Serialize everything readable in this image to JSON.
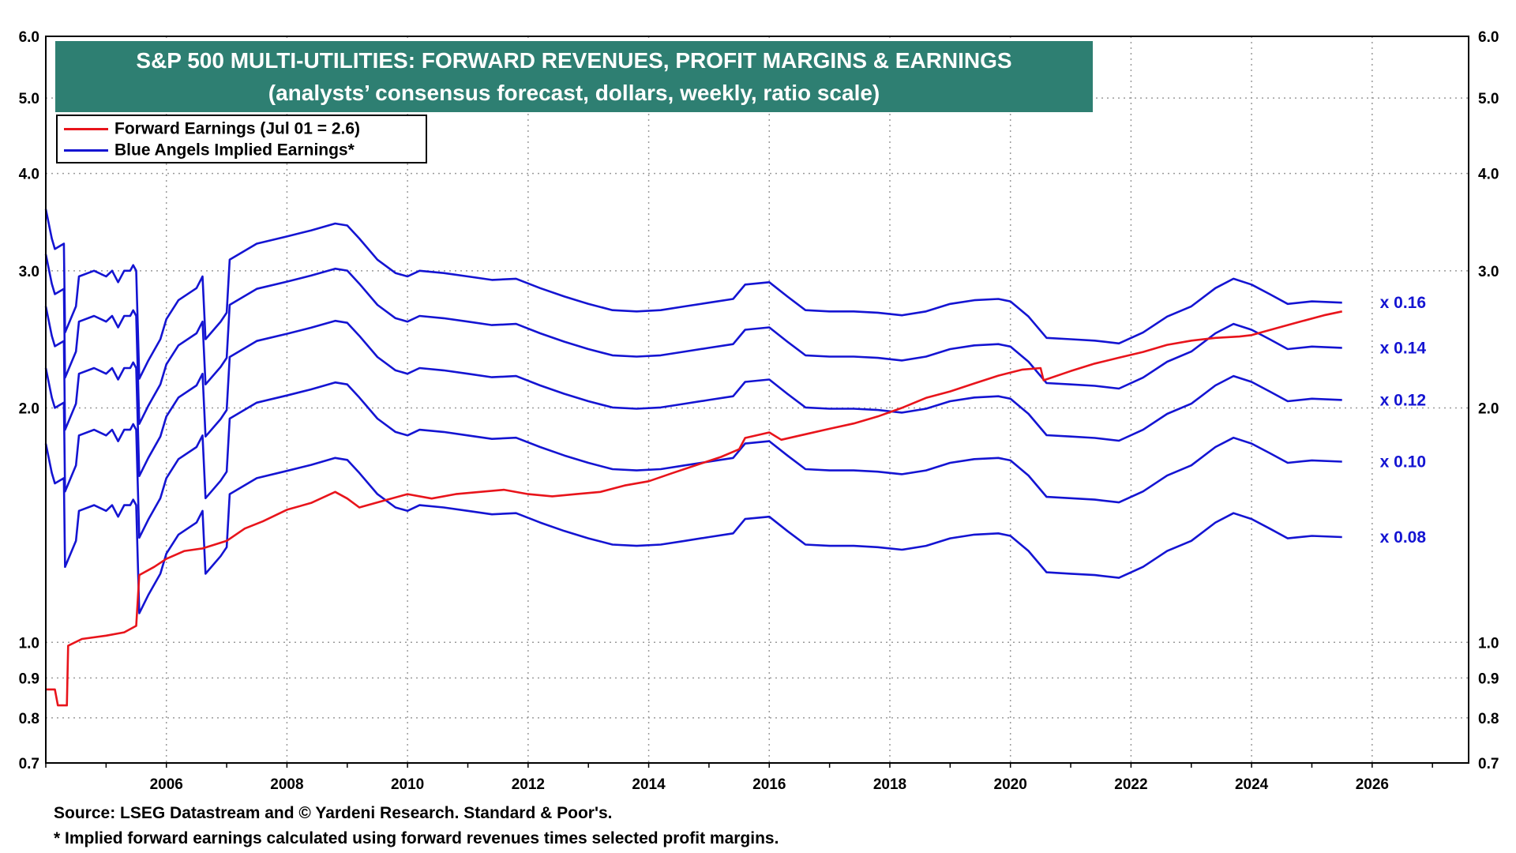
{
  "title": {
    "line1": "S&P 500 MULTI-UTILITIES: FORWARD REVENUES, PROFIT MARGINS & EARNINGS",
    "line2": "(analysts’ consensus forecast, dollars, weekly, ratio scale)"
  },
  "legend": {
    "items": [
      {
        "label": "Forward Earnings (Jul 01 = 2.6)",
        "color": "#e8141b"
      },
      {
        "label": "Blue Angels Implied Earnings*",
        "color": "#1414d2"
      }
    ]
  },
  "footer": {
    "source": "Source: LSEG Datastream and © Yardeni Research. Standard & Poor's.",
    "note": "* Implied forward earnings calculated using forward revenues times selected profit margins."
  },
  "chart_data": {
    "type": "line",
    "scale": "log",
    "grid": true,
    "legend_position": "top-left",
    "xlim": [
      2004.0,
      2027.6
    ],
    "ylim": [
      0.7,
      6.0
    ],
    "x_ticks": [
      2006,
      2008,
      2010,
      2012,
      2014,
      2016,
      2018,
      2020,
      2022,
      2024,
      2026
    ],
    "y_ticks": [
      "6.0",
      "5.0",
      "4.0",
      "3.0",
      "2.0",
      "1.0",
      "0.9",
      "0.8",
      "0.7"
    ],
    "colors": {
      "earnings": "#e8141b",
      "angels": "#1414d2"
    },
    "series": [
      {
        "name": "Forward Earnings (Jul 01 = 2.6)",
        "color": "#e8141b",
        "points": [
          [
            2004.0,
            0.87
          ],
          [
            2004.15,
            0.87
          ],
          [
            2004.2,
            0.83
          ],
          [
            2004.35,
            0.83
          ],
          [
            2004.37,
            0.99
          ],
          [
            2004.6,
            1.01
          ],
          [
            2005.0,
            1.02
          ],
          [
            2005.3,
            1.03
          ],
          [
            2005.5,
            1.05
          ],
          [
            2005.55,
            1.22
          ],
          [
            2005.8,
            1.25
          ],
          [
            2006.0,
            1.28
          ],
          [
            2006.3,
            1.31
          ],
          [
            2006.6,
            1.32
          ],
          [
            2007.0,
            1.35
          ],
          [
            2007.3,
            1.4
          ],
          [
            2007.6,
            1.43
          ],
          [
            2008.0,
            1.48
          ],
          [
            2008.4,
            1.51
          ],
          [
            2008.8,
            1.56
          ],
          [
            2009.0,
            1.53
          ],
          [
            2009.2,
            1.49
          ],
          [
            2009.6,
            1.52
          ],
          [
            2010.0,
            1.55
          ],
          [
            2010.4,
            1.53
          ],
          [
            2010.8,
            1.55
          ],
          [
            2011.2,
            1.56
          ],
          [
            2011.6,
            1.57
          ],
          [
            2012.0,
            1.55
          ],
          [
            2012.4,
            1.54
          ],
          [
            2012.8,
            1.55
          ],
          [
            2013.2,
            1.56
          ],
          [
            2013.6,
            1.59
          ],
          [
            2014.0,
            1.61
          ],
          [
            2014.4,
            1.65
          ],
          [
            2014.8,
            1.69
          ],
          [
            2015.2,
            1.73
          ],
          [
            2015.5,
            1.77
          ],
          [
            2015.6,
            1.83
          ],
          [
            2016.0,
            1.86
          ],
          [
            2016.2,
            1.82
          ],
          [
            2016.6,
            1.85
          ],
          [
            2017.0,
            1.88
          ],
          [
            2017.4,
            1.91
          ],
          [
            2017.8,
            1.95
          ],
          [
            2018.2,
            2.0
          ],
          [
            2018.6,
            2.06
          ],
          [
            2019.0,
            2.1
          ],
          [
            2019.4,
            2.15
          ],
          [
            2019.8,
            2.2
          ],
          [
            2020.2,
            2.24
          ],
          [
            2020.5,
            2.25
          ],
          [
            2020.55,
            2.17
          ],
          [
            2021.0,
            2.23
          ],
          [
            2021.4,
            2.28
          ],
          [
            2021.8,
            2.32
          ],
          [
            2022.2,
            2.36
          ],
          [
            2022.6,
            2.41
          ],
          [
            2023.0,
            2.44
          ],
          [
            2023.4,
            2.46
          ],
          [
            2023.8,
            2.47
          ],
          [
            2024.0,
            2.48
          ],
          [
            2024.4,
            2.53
          ],
          [
            2024.8,
            2.58
          ],
          [
            2025.2,
            2.63
          ],
          [
            2025.5,
            2.66
          ]
        ]
      },
      {
        "name": "Blue Angels Implied Earnings*",
        "color": "#1414d2",
        "points": [
          [
            2004.0,
            3.6
          ],
          [
            2004.1,
            3.3
          ],
          [
            2004.15,
            3.2
          ],
          [
            2004.3,
            3.25
          ],
          [
            2004.32,
            2.5
          ],
          [
            2004.5,
            2.7
          ],
          [
            2004.55,
            2.95
          ],
          [
            2004.8,
            3.0
          ],
          [
            2005.0,
            2.95
          ],
          [
            2005.1,
            3.0
          ],
          [
            2005.2,
            2.9
          ],
          [
            2005.3,
            3.0
          ],
          [
            2005.4,
            3.0
          ],
          [
            2005.45,
            3.05
          ],
          [
            2005.5,
            3.0
          ],
          [
            2005.55,
            2.18
          ],
          [
            2005.7,
            2.3
          ],
          [
            2005.9,
            2.45
          ],
          [
            2006.0,
            2.6
          ],
          [
            2006.2,
            2.75
          ],
          [
            2006.5,
            2.85
          ],
          [
            2006.6,
            2.95
          ],
          [
            2006.65,
            2.45
          ],
          [
            2006.9,
            2.58
          ],
          [
            2007.0,
            2.65
          ],
          [
            2007.05,
            3.1
          ],
          [
            2007.5,
            3.25
          ],
          [
            2008.0,
            3.32
          ],
          [
            2008.4,
            3.38
          ],
          [
            2008.8,
            3.45
          ],
          [
            2009.0,
            3.43
          ],
          [
            2009.2,
            3.3
          ],
          [
            2009.5,
            3.1
          ],
          [
            2009.8,
            2.98
          ],
          [
            2010.0,
            2.95
          ],
          [
            2010.2,
            3.0
          ],
          [
            2010.6,
            2.98
          ],
          [
            2011.0,
            2.95
          ],
          [
            2011.4,
            2.92
          ],
          [
            2011.8,
            2.93
          ],
          [
            2012.2,
            2.85
          ],
          [
            2012.6,
            2.78
          ],
          [
            2013.0,
            2.72
          ],
          [
            2013.4,
            2.67
          ],
          [
            2013.8,
            2.66
          ],
          [
            2014.2,
            2.67
          ],
          [
            2014.6,
            2.7
          ],
          [
            2015.0,
            2.73
          ],
          [
            2015.4,
            2.76
          ],
          [
            2015.6,
            2.88
          ],
          [
            2016.0,
            2.9
          ],
          [
            2016.3,
            2.78
          ],
          [
            2016.6,
            2.67
          ],
          [
            2017.0,
            2.66
          ],
          [
            2017.4,
            2.66
          ],
          [
            2017.8,
            2.65
          ],
          [
            2018.2,
            2.63
          ],
          [
            2018.6,
            2.66
          ],
          [
            2019.0,
            2.72
          ],
          [
            2019.4,
            2.75
          ],
          [
            2019.8,
            2.76
          ],
          [
            2020.0,
            2.74
          ],
          [
            2020.3,
            2.62
          ],
          [
            2020.6,
            2.46
          ],
          [
            2021.0,
            2.45
          ],
          [
            2021.4,
            2.44
          ],
          [
            2021.8,
            2.42
          ],
          [
            2022.2,
            2.5
          ],
          [
            2022.6,
            2.62
          ],
          [
            2023.0,
            2.7
          ],
          [
            2023.4,
            2.85
          ],
          [
            2023.7,
            2.93
          ],
          [
            2024.0,
            2.88
          ],
          [
            2024.3,
            2.8
          ],
          [
            2024.6,
            2.72
          ],
          [
            2025.0,
            2.74
          ],
          [
            2025.5,
            2.73
          ]
        ]
      }
    ],
    "multiplier_labels": [
      {
        "text": "x 0.16",
        "ratio": 1.0
      },
      {
        "text": "x 0.14",
        "ratio": 0.875
      },
      {
        "text": "x 0.12",
        "ratio": 0.75
      },
      {
        "text": "x 0.10",
        "ratio": 0.625
      },
      {
        "text": "x 0.08",
        "ratio": 0.5
      }
    ]
  }
}
